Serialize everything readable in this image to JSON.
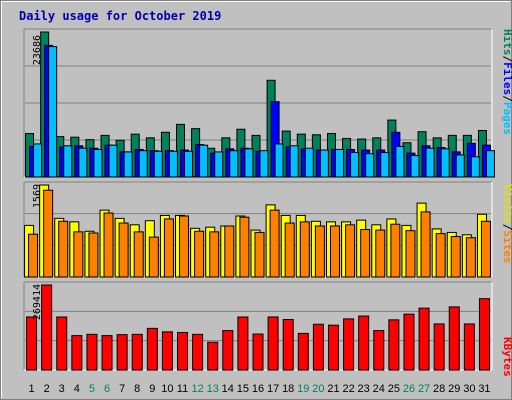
{
  "title": "Daily usage for October 2019",
  "colors": {
    "title": "#0000b0",
    "hits": "#00805c",
    "files": "#0000ff",
    "pages": "#00c0ff",
    "visits": "#ffff00",
    "sites": "#ff8000",
    "kbytes": "#ff0000",
    "weekend_day": "#00805c",
    "weekday": "#000000"
  },
  "chart_data": [
    {
      "type": "bar",
      "title": "Daily usage for October 2019",
      "categories": [
        "1",
        "2",
        "3",
        "4",
        "5",
        "6",
        "7",
        "8",
        "9",
        "10",
        "11",
        "12",
        "13",
        "14",
        "15",
        "16",
        "17",
        "18",
        "19",
        "20",
        "21",
        "22",
        "23",
        "24",
        "25",
        "26",
        "27",
        "28",
        "29",
        "30",
        "31"
      ],
      "weekend_days": [
        "5",
        "6",
        "12",
        "13",
        "19",
        "20",
        "26",
        "27"
      ],
      "max_label": "23686",
      "ylim": [
        0,
        23686
      ],
      "ylabel_parts": [
        "Pages",
        "Files",
        "Hits"
      ],
      "series": [
        {
          "name": "Hits",
          "values": [
            7100,
            23686,
            6600,
            6500,
            6100,
            6800,
            6000,
            7000,
            6400,
            7300,
            8600,
            7900,
            4700,
            6400,
            7800,
            6800,
            15800,
            7500,
            7000,
            6900,
            7100,
            6300,
            6200,
            6400,
            9300,
            5600,
            7400,
            6400,
            6800,
            6800,
            7600
          ]
        },
        {
          "name": "Files",
          "values": [
            5000,
            21500,
            4900,
            5100,
            4700,
            5200,
            4100,
            4500,
            4300,
            4300,
            4400,
            5300,
            3900,
            4600,
            4700,
            4200,
            12300,
            4900,
            4600,
            4400,
            4500,
            4500,
            4400,
            4400,
            7300,
            3900,
            5100,
            4800,
            4100,
            5500,
            5200
          ]
        },
        {
          "name": "Pages",
          "values": [
            5400,
            21300,
            5100,
            4700,
            4500,
            5200,
            4100,
            4300,
            4200,
            4200,
            4200,
            5200,
            4100,
            4300,
            4600,
            4300,
            5400,
            5100,
            4700,
            4400,
            4500,
            4000,
            3800,
            4000,
            5000,
            3500,
            4700,
            4600,
            3600,
            3300,
            4300
          ]
        }
      ]
    },
    {
      "type": "bar",
      "categories": [
        "1",
        "2",
        "3",
        "4",
        "5",
        "6",
        "7",
        "8",
        "9",
        "10",
        "11",
        "12",
        "13",
        "14",
        "15",
        "16",
        "17",
        "18",
        "19",
        "20",
        "21",
        "22",
        "23",
        "24",
        "25",
        "26",
        "27",
        "28",
        "29",
        "30",
        "31"
      ],
      "max_label": "1569",
      "ylim": [
        0,
        1569
      ],
      "ylabel_parts": [
        "Sites",
        "Visits"
      ],
      "series": [
        {
          "name": "Visits",
          "values": [
            880,
            1569,
            1000,
            940,
            780,
            1140,
            1000,
            890,
            960,
            1050,
            1050,
            830,
            850,
            870,
            1040,
            800,
            1230,
            1050,
            1050,
            950,
            940,
            940,
            970,
            890,
            990,
            880,
            1260,
            820,
            760,
            720,
            1070
          ]
        },
        {
          "name": "Sites",
          "values": [
            730,
            1480,
            950,
            770,
            750,
            1090,
            920,
            770,
            680,
            990,
            1040,
            780,
            770,
            870,
            1020,
            760,
            1140,
            920,
            940,
            870,
            870,
            890,
            810,
            800,
            900,
            790,
            1110,
            740,
            690,
            670,
            950
          ]
        }
      ]
    },
    {
      "type": "bar",
      "categories": [
        "1",
        "2",
        "3",
        "4",
        "5",
        "6",
        "7",
        "8",
        "9",
        "10",
        "11",
        "12",
        "13",
        "14",
        "15",
        "16",
        "17",
        "18",
        "19",
        "20",
        "21",
        "22",
        "23",
        "24",
        "25",
        "26",
        "27",
        "28",
        "29",
        "30",
        "31"
      ],
      "max_label": "269414",
      "ylim": [
        0,
        269414
      ],
      "ylabel_parts": [
        "KBytes"
      ],
      "series": [
        {
          "name": "KBytes",
          "values": [
            168000,
            269414,
            168000,
            109000,
            113000,
            109000,
            112000,
            113000,
            132000,
            121000,
            119000,
            113000,
            88000,
            125000,
            168000,
            114000,
            168000,
            160000,
            116000,
            145000,
            142000,
            162000,
            171000,
            125000,
            159000,
            177000,
            196000,
            146000,
            200000,
            146000,
            226000
          ]
        }
      ]
    }
  ]
}
